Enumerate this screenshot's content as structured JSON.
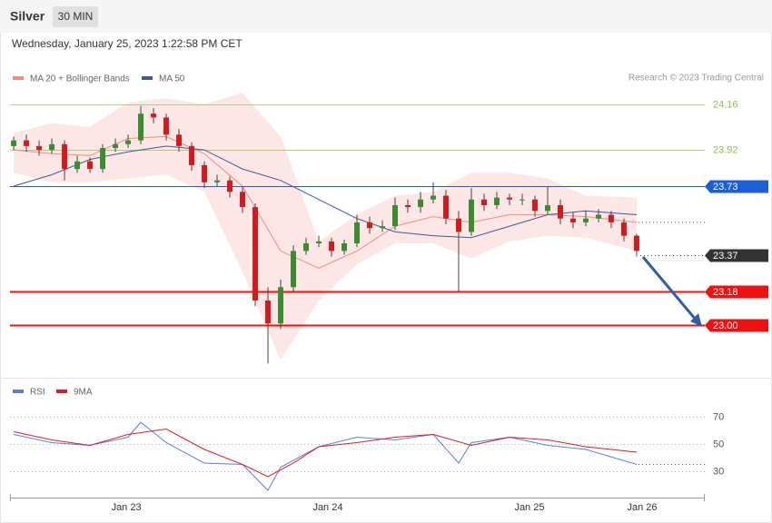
{
  "header": {
    "title": "Silver",
    "interval": "30 MIN",
    "timestamp": "Wednesday, January 25, 2023 1:22:58 PM CET",
    "credit": "Research © 2023 Trading Central"
  },
  "chart_data": [
    {
      "type": "candlestick",
      "x": [
        0,
        1,
        2,
        3,
        4,
        5,
        6,
        7,
        8,
        9,
        10,
        11,
        12,
        13,
        14,
        15,
        16,
        17,
        18,
        19,
        20,
        21,
        22,
        23,
        24,
        25,
        26,
        27,
        28,
        29,
        30,
        31,
        32,
        33,
        34,
        35,
        36,
        37,
        38,
        39,
        40,
        41,
        42,
        43,
        44,
        45,
        46,
        47,
        48,
        49
      ],
      "open": [
        23.94,
        23.97,
        23.94,
        23.92,
        23.95,
        23.82,
        23.86,
        23.82,
        23.93,
        23.95,
        23.97,
        24.11,
        24.09,
        24.0,
        23.94,
        23.84,
        23.75,
        23.76,
        23.7,
        23.62,
        23.13,
        23.01,
        23.2,
        23.39,
        23.43,
        23.44,
        23.39,
        23.43,
        23.54,
        23.51,
        23.52,
        23.63,
        23.62,
        23.66,
        23.68,
        23.56,
        23.49,
        23.66,
        23.63,
        23.67,
        23.66,
        23.66,
        23.6,
        23.63,
        23.56,
        23.54,
        23.56,
        23.58,
        23.54,
        23.47
      ],
      "high": [
        23.99,
        24.0,
        23.97,
        23.98,
        23.97,
        23.89,
        23.88,
        23.95,
        23.98,
        24.0,
        24.15,
        24.14,
        24.11,
        24.03,
        23.96,
        23.86,
        23.79,
        23.78,
        23.73,
        23.64,
        23.2,
        23.24,
        23.42,
        23.46,
        23.47,
        23.46,
        23.45,
        23.58,
        23.57,
        23.55,
        23.67,
        23.66,
        23.7,
        23.75,
        23.71,
        23.6,
        23.72,
        23.69,
        23.7,
        23.69,
        23.69,
        23.68,
        23.73,
        23.66,
        23.59,
        23.6,
        23.61,
        23.6,
        23.56,
        23.48
      ],
      "low": [
        23.92,
        23.91,
        23.89,
        23.9,
        23.76,
        23.8,
        23.8,
        23.8,
        23.91,
        23.93,
        23.95,
        24.06,
        23.97,
        23.91,
        23.81,
        23.72,
        23.73,
        23.67,
        23.59,
        23.1,
        22.8,
        22.98,
        23.18,
        23.37,
        23.41,
        23.36,
        23.37,
        23.41,
        23.48,
        23.49,
        23.5,
        23.59,
        23.59,
        23.64,
        23.53,
        23.18,
        23.47,
        23.6,
        23.61,
        23.63,
        23.63,
        23.57,
        23.58,
        23.53,
        23.51,
        23.52,
        23.54,
        23.51,
        23.44,
        23.36
      ],
      "close": [
        23.97,
        23.94,
        23.92,
        23.95,
        23.82,
        23.86,
        23.82,
        23.93,
        23.95,
        23.97,
        24.11,
        24.09,
        24.0,
        23.94,
        23.84,
        23.75,
        23.76,
        23.7,
        23.62,
        23.13,
        23.01,
        23.2,
        23.39,
        23.43,
        23.44,
        23.39,
        23.43,
        23.54,
        23.51,
        23.52,
        23.63,
        23.62,
        23.66,
        23.68,
        23.56,
        23.49,
        23.66,
        23.63,
        23.67,
        23.66,
        23.66,
        23.6,
        23.63,
        23.56,
        23.54,
        23.56,
        23.58,
        23.54,
        23.47,
        23.39
      ],
      "up_color": "#3d8b2f",
      "down_color": "#d01c1f",
      "ma20": {
        "name": "MA 20 + Bollinger Bands",
        "color": "#f28b82",
        "band_color": "#fde0e0",
        "x": [
          0,
          3,
          6,
          9,
          12,
          15,
          18,
          21,
          24,
          27,
          30,
          33,
          36,
          39,
          42,
          45,
          49
        ],
        "values": [
          23.92,
          23.9,
          23.89,
          23.98,
          23.99,
          23.9,
          23.73,
          23.39,
          23.3,
          23.39,
          23.52,
          23.57,
          23.54,
          23.58,
          23.58,
          23.57,
          23.54
        ],
        "upper": [
          24.01,
          24.06,
          24.04,
          24.17,
          24.19,
          24.16,
          24.22,
          23.99,
          23.44,
          23.58,
          23.68,
          23.7,
          23.8,
          23.8,
          23.77,
          23.68,
          23.67
        ],
        "lower": [
          23.8,
          23.75,
          23.75,
          23.77,
          23.79,
          23.7,
          23.28,
          22.82,
          23.13,
          23.32,
          23.43,
          23.43,
          23.35,
          23.44,
          23.47,
          23.46,
          23.39
        ]
      },
      "ma50": {
        "name": "MA 50",
        "color": "#3d5a98",
        "x": [
          0,
          3,
          6,
          9,
          12,
          15,
          18,
          21,
          24,
          27,
          30,
          33,
          36,
          39,
          42,
          45,
          49
        ],
        "values": [
          23.73,
          23.79,
          23.87,
          23.91,
          23.94,
          23.92,
          23.82,
          23.76,
          23.66,
          23.56,
          23.49,
          23.47,
          23.46,
          23.52,
          23.58,
          23.6,
          23.58
        ]
      },
      "levels": [
        {
          "value": 24.16,
          "color": "#8bc34a",
          "style": "thin"
        },
        {
          "value": 23.92,
          "color": "#8bc34a",
          "style": "thin"
        },
        {
          "value": 23.73,
          "color": "#1a5fd6",
          "style": "tag"
        },
        {
          "value": 23.37,
          "color": "#333333",
          "style": "dotted"
        },
        {
          "value": 23.18,
          "color": "#ee1111",
          "style": "thick"
        },
        {
          "value": 23,
          "label": "23.00",
          "color": "#ee1111",
          "style": "thick"
        }
      ],
      "xlim": [
        -0.29,
        54.36
      ],
      "ylim": [
        22.73,
        24.23
      ],
      "xticks": [
        {
          "value": 8.86,
          "label": "Jan 23"
        },
        {
          "value": 24.71,
          "label": "Jan 24"
        },
        {
          "value": 40.57,
          "label": "Jan 25"
        },
        {
          "value": 49.43,
          "label": "Jan 26"
        }
      ]
    },
    {
      "type": "line",
      "xlim": [
        -0.29,
        54.36
      ],
      "ylim": [
        15,
        95
      ],
      "yticks": [
        30,
        50,
        70
      ],
      "series": [
        {
          "name": "RSI",
          "color": "#5b7fd9",
          "x": [
            0,
            3,
            6,
            9,
            10,
            12,
            15,
            18,
            20,
            21,
            24,
            27,
            30,
            33,
            35,
            36,
            39,
            42,
            45,
            49
          ],
          "values": [
            57,
            51,
            49,
            55,
            66,
            51,
            36,
            35,
            16,
            33,
            48,
            55,
            53,
            57,
            36,
            51,
            55,
            49,
            46,
            35
          ]
        },
        {
          "name": "9MA",
          "color": "#e31a1a",
          "x": [
            0,
            3,
            6,
            9,
            12,
            15,
            18,
            20,
            22,
            24,
            27,
            30,
            33,
            36,
            39,
            42,
            45,
            49
          ],
          "values": [
            59,
            53,
            49,
            57,
            61,
            46,
            35,
            26,
            36,
            48,
            51,
            55,
            57,
            49,
            55,
            53,
            48,
            44
          ]
        }
      ]
    }
  ]
}
